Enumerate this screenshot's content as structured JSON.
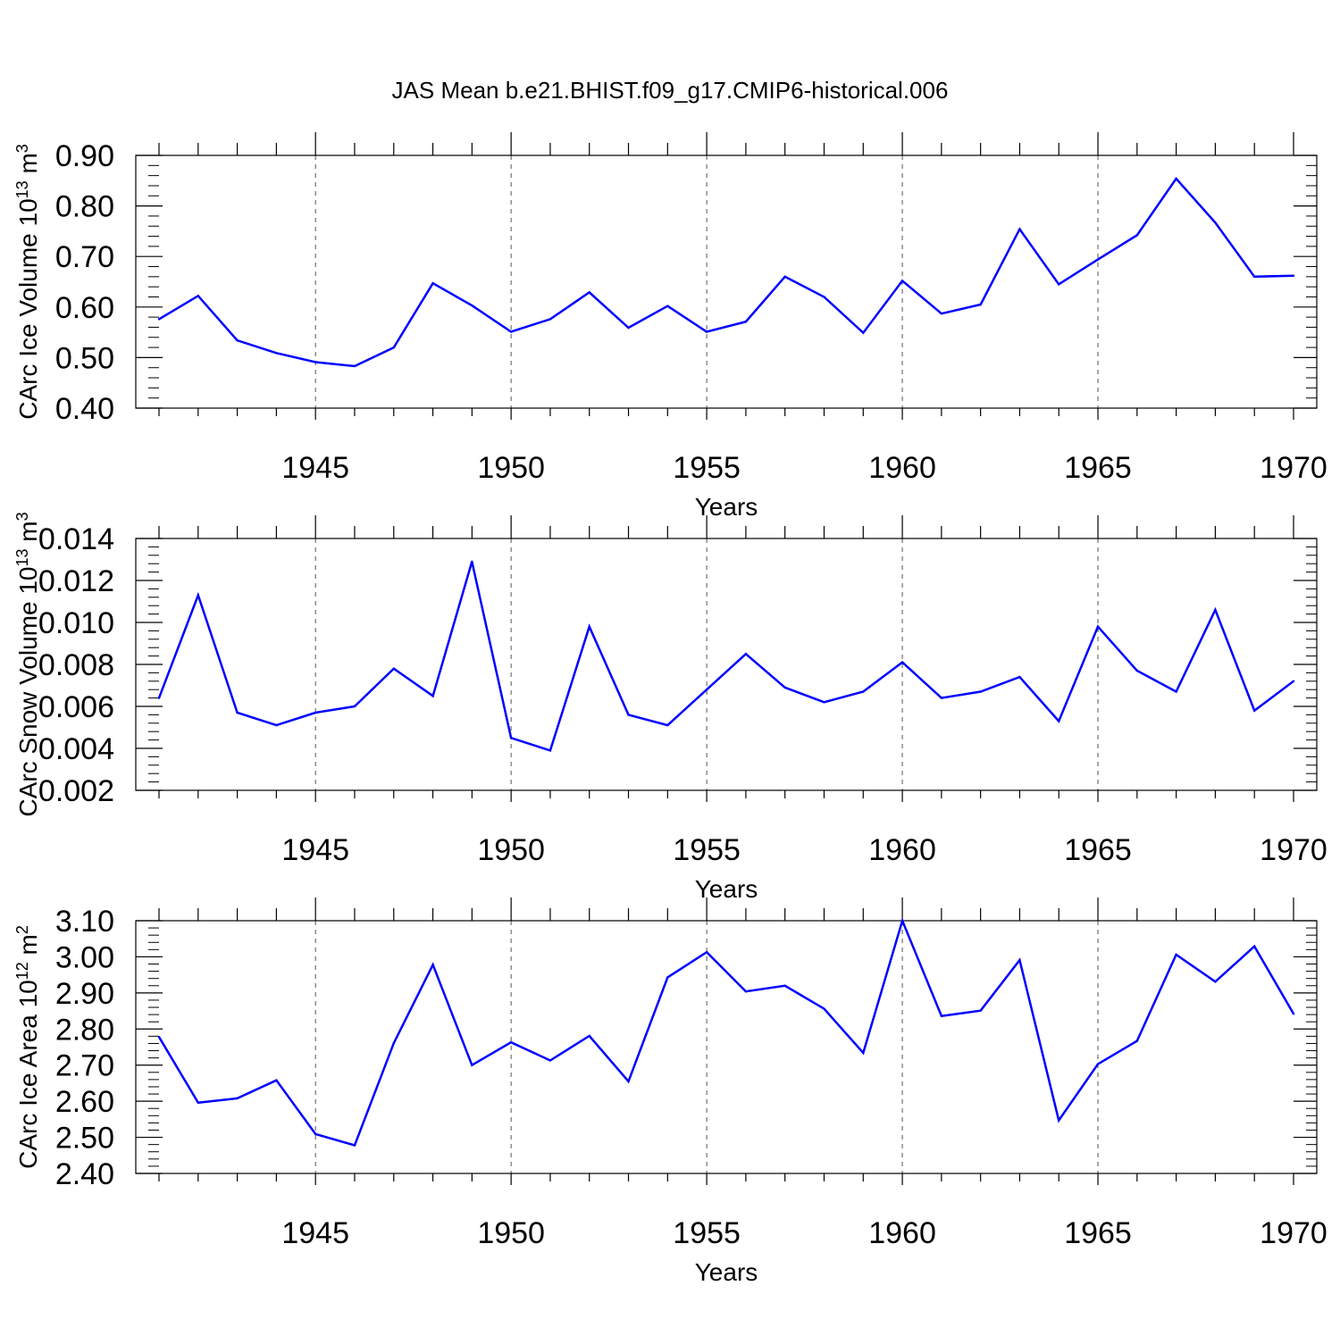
{
  "chart_data": {
    "type": "line",
    "title": "JAS Mean b.e21.BHIST.f09_g17.CMIP6-historical.006",
    "line_color": "#0000ff",
    "x": [
      1941,
      1942,
      1943,
      1944,
      1945,
      1946,
      1947,
      1948,
      1949,
      1950,
      1951,
      1952,
      1953,
      1954,
      1955,
      1956,
      1957,
      1958,
      1959,
      1960,
      1961,
      1962,
      1963,
      1964,
      1965,
      1966,
      1967,
      1968,
      1969,
      1970
    ],
    "xlim": [
      1941,
      1970
    ],
    "xticks": [
      1945,
      1950,
      1955,
      1960,
      1965,
      1970
    ],
    "xlabel": "Years",
    "panels": [
      {
        "ylabel": "CArc Ice Volume 10",
        "ylabel_exp": "13",
        "ylabel_unit": " m",
        "ylabel_unit_exp": "3",
        "ylim": [
          0.4,
          0.9
        ],
        "yticks": [
          "0.40",
          "0.50",
          "0.60",
          "0.70",
          "0.80",
          "0.90"
        ],
        "grid": "vertical-dashed",
        "values": [
          0.576,
          0.622,
          0.534,
          0.509,
          0.491,
          0.483,
          0.52,
          0.647,
          0.603,
          0.551,
          0.576,
          0.629,
          0.559,
          0.602,
          0.551,
          0.571,
          0.66,
          0.62,
          0.549,
          0.652,
          0.587,
          0.605,
          0.754,
          0.645,
          0.694,
          0.742,
          0.854,
          0.767,
          0.66,
          0.662
        ]
      },
      {
        "ylabel": "CArc Snow Volume 10",
        "ylabel_exp": "13",
        "ylabel_unit": " m",
        "ylabel_unit_exp": "3",
        "ylim": [
          0.002,
          0.014
        ],
        "yticks": [
          "0.002",
          "0.004",
          "0.006",
          "0.008",
          "0.010",
          "0.012",
          "0.014"
        ],
        "grid": "vertical-dashed",
        "values": [
          0.0064,
          0.0113,
          0.0057,
          0.0051,
          0.0057,
          0.006,
          0.0078,
          0.0065,
          0.0129,
          0.0045,
          0.0039,
          0.0098,
          0.0056,
          0.0051,
          0.0068,
          0.0085,
          0.0069,
          0.0062,
          0.0067,
          0.0081,
          0.0064,
          0.0067,
          0.0074,
          0.0053,
          0.0098,
          0.0077,
          0.0067,
          0.0106,
          0.0058,
          0.0072
        ]
      },
      {
        "ylabel": "CArc Ice Area 10",
        "ylabel_exp": "12",
        "ylabel_unit": " m",
        "ylabel_unit_exp": "2",
        "ylim": [
          2.4,
          3.1
        ],
        "yticks": [
          "2.40",
          "2.50",
          "2.60",
          "2.70",
          "2.80",
          "2.90",
          "3.00",
          "3.10"
        ],
        "grid": "vertical-dashed",
        "values": [
          2.778,
          2.596,
          2.608,
          2.658,
          2.509,
          2.478,
          2.761,
          2.978,
          2.7,
          2.763,
          2.713,
          2.781,
          2.655,
          2.943,
          3.013,
          2.904,
          2.92,
          2.856,
          2.734,
          3.1,
          2.836,
          2.851,
          2.991,
          2.547,
          2.703,
          2.767,
          3.006,
          2.931,
          3.029,
          2.842
        ]
      }
    ]
  }
}
